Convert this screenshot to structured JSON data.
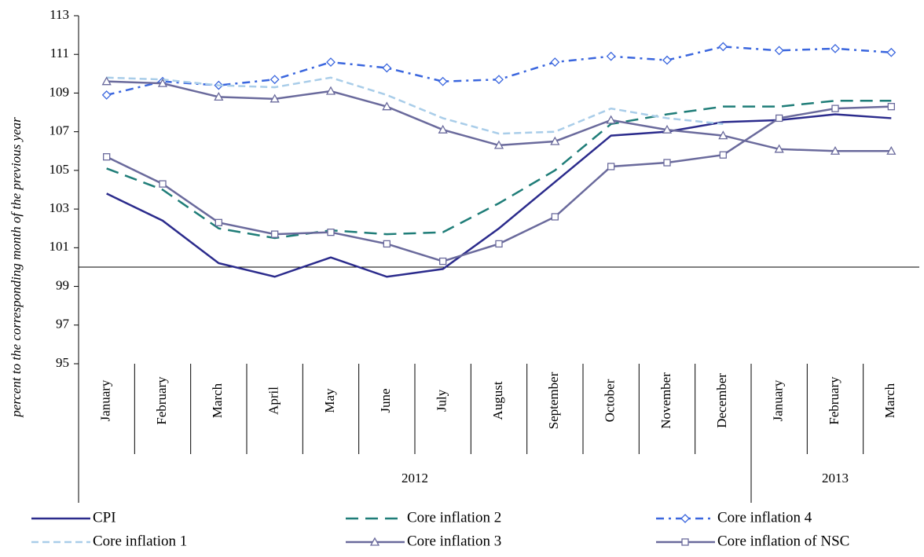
{
  "chart_data": {
    "type": "line",
    "y_label": "percent to the corresponding month of the previous year",
    "categories": [
      "January",
      "February",
      "March",
      "April",
      "May",
      "June",
      "July",
      "August",
      "September",
      "October",
      "November",
      "December",
      "January",
      "February",
      "March"
    ],
    "groups": [
      {
        "label": "2012",
        "span": 12
      },
      {
        "label": "2013",
        "span": 3
      }
    ],
    "ylim": [
      95,
      113
    ],
    "yticks": [
      95,
      97,
      99,
      101,
      103,
      105,
      107,
      109,
      111,
      113
    ],
    "x_axis_at": 100,
    "series": [
      {
        "name": "CPI",
        "color": "#2b2b8c",
        "dash": "solid",
        "marker": "none",
        "values": [
          103.8,
          102.4,
          100.2,
          99.5,
          100.5,
          99.5,
          99.9,
          102.0,
          104.4,
          106.8,
          107.0,
          107.5,
          107.6,
          107.9,
          107.7
        ]
      },
      {
        "name": "Core inflation 2",
        "color": "#1f7d78",
        "dash": "long",
        "marker": "none",
        "values": [
          105.1,
          104.0,
          102.0,
          101.5,
          101.9,
          101.7,
          101.8,
          103.3,
          105.0,
          107.4,
          107.9,
          108.3,
          108.3,
          108.6,
          108.6
        ]
      },
      {
        "name": "Core inflation 4",
        "color": "#3a66de",
        "dash": "dashdot",
        "marker": "diamond",
        "values": [
          108.9,
          109.6,
          109.4,
          109.7,
          110.6,
          110.3,
          109.6,
          109.7,
          110.6,
          110.9,
          110.7,
          111.4,
          111.2,
          111.3,
          111.1
        ]
      },
      {
        "name": "Core inflation 1",
        "color": "#a9cde9",
        "dash": "short",
        "marker": "none",
        "values": [
          109.8,
          109.7,
          109.4,
          109.3,
          109.8,
          108.9,
          107.7,
          106.9,
          107.0,
          108.2,
          107.7,
          107.4,
          null,
          null,
          null
        ]
      },
      {
        "name": "Core inflation 3",
        "color": "#6a6a9c",
        "dash": "solid",
        "marker": "triangle",
        "values": [
          109.6,
          109.5,
          108.8,
          108.7,
          109.1,
          108.3,
          107.1,
          106.3,
          106.5,
          107.6,
          107.1,
          106.8,
          106.1,
          106.0,
          106.0
        ]
      },
      {
        "name": "Core inflation of NSC",
        "color": "#6a6a9c",
        "dash": "solid",
        "marker": "square",
        "values": [
          105.7,
          104.3,
          102.3,
          101.7,
          101.8,
          101.2,
          100.3,
          101.2,
          102.6,
          105.2,
          105.4,
          105.8,
          107.7,
          108.2,
          108.3
        ]
      }
    ]
  }
}
